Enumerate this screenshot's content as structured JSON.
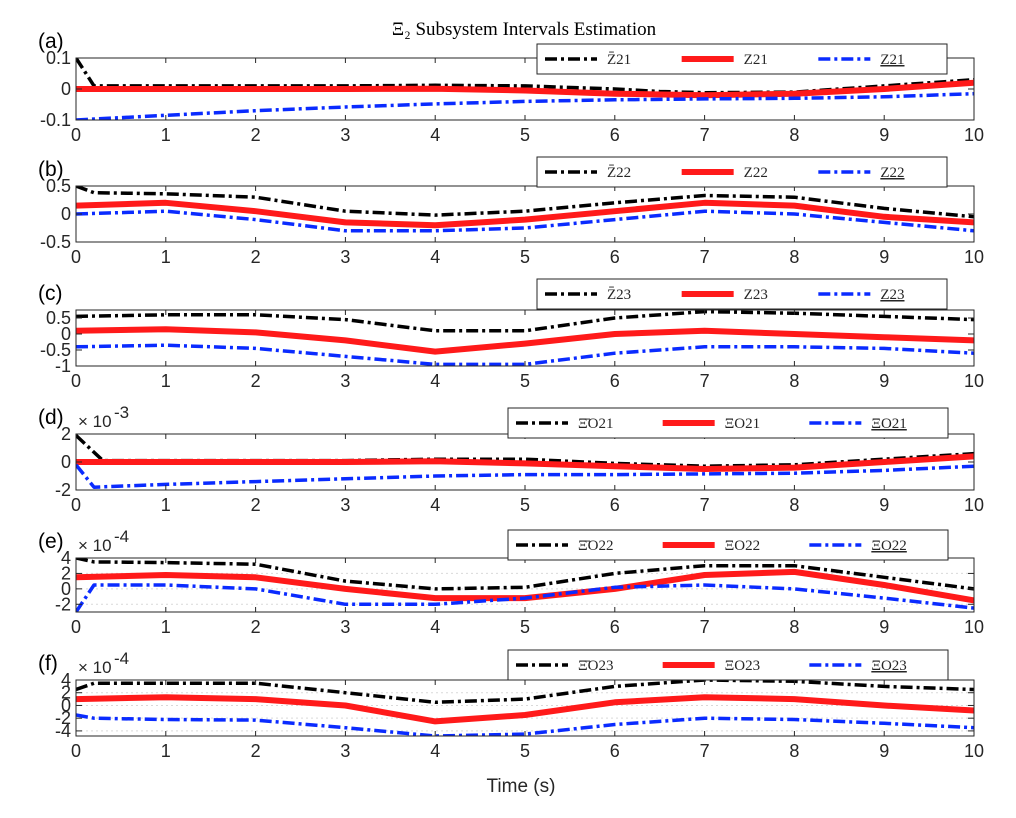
{
  "figure": {
    "suptitle": "Ξ₂ Subsystem Intervals Estimation",
    "xlabel": "Time (s)"
  },
  "colors": {
    "upper": "#000000",
    "actual": "#ff1a1a",
    "lower": "#0a2bff",
    "axis": "#262626",
    "grid": "#d9d9d9"
  },
  "chart_data": [
    {
      "type": "line",
      "label": "(a)",
      "exponent": "",
      "xlim": [
        0,
        10
      ],
      "ylim": [
        -0.1,
        0.1
      ],
      "xticks": [
        0,
        1,
        2,
        3,
        4,
        5,
        6,
        7,
        8,
        9,
        10
      ],
      "yticks": [
        "0.1",
        "0",
        "-0.1"
      ],
      "ytick_values": [
        0.1,
        0,
        -0.1
      ],
      "grid": false,
      "legend_position": "top-right",
      "series": [
        {
          "name": "Z̄̄21",
          "role": "upper",
          "x": [
            0,
            0.2,
            1,
            2,
            3,
            4,
            5,
            6,
            6.5,
            7,
            8,
            9,
            10
          ],
          "y": [
            0.1,
            0.01,
            0.01,
            0.01,
            0.01,
            0.012,
            0.01,
            0.0,
            -0.008,
            -0.012,
            -0.01,
            0.01,
            0.03
          ]
        },
        {
          "name": "Z21",
          "role": "actual",
          "x": [
            0,
            1,
            2,
            3,
            4,
            5,
            6,
            7,
            8,
            9,
            10
          ],
          "y": [
            0,
            0,
            0,
            0,
            0.001,
            -0.005,
            -0.015,
            -0.02,
            -0.015,
            0.0,
            0.02
          ]
        },
        {
          "name": "Z21",
          "role": "lower",
          "x": [
            0,
            1,
            2,
            3,
            4,
            5,
            6,
            7,
            8,
            9,
            10
          ],
          "y": [
            -0.1,
            -0.085,
            -0.07,
            -0.058,
            -0.048,
            -0.04,
            -0.035,
            -0.032,
            -0.03,
            -0.025,
            -0.015
          ]
        }
      ]
    },
    {
      "type": "line",
      "label": "(b)",
      "exponent": "",
      "xlim": [
        0,
        10
      ],
      "ylim": [
        -0.5,
        0.5
      ],
      "xticks": [
        0,
        1,
        2,
        3,
        4,
        5,
        6,
        7,
        8,
        9,
        10
      ],
      "yticks": [
        "0.5",
        "0",
        "-0.5"
      ],
      "ytick_values": [
        0.5,
        0,
        -0.5
      ],
      "grid": false,
      "legend_position": "top-right",
      "series": [
        {
          "name": "Z̄̄22",
          "role": "upper",
          "x": [
            0,
            0.2,
            1,
            2,
            3,
            4,
            5,
            6,
            7,
            8,
            9,
            10
          ],
          "y": [
            0.5,
            0.38,
            0.36,
            0.3,
            0.05,
            -0.02,
            0.05,
            0.2,
            0.33,
            0.3,
            0.1,
            -0.05
          ]
        },
        {
          "name": "Z22",
          "role": "actual",
          "x": [
            0,
            1,
            2,
            3,
            4,
            5,
            6,
            7,
            8,
            9,
            10
          ],
          "y": [
            0.15,
            0.2,
            0.05,
            -0.15,
            -0.2,
            -0.1,
            0.05,
            0.2,
            0.15,
            -0.05,
            -0.15
          ]
        },
        {
          "name": "Z22",
          "role": "lower",
          "x": [
            0,
            1,
            2,
            3,
            4,
            5,
            6,
            7,
            8,
            9,
            10
          ],
          "y": [
            0.0,
            0.05,
            -0.1,
            -0.3,
            -0.3,
            -0.25,
            -0.1,
            0.05,
            0.0,
            -0.15,
            -0.3
          ]
        }
      ]
    },
    {
      "type": "line",
      "label": "(c)",
      "exponent": "",
      "xlim": [
        0,
        10
      ],
      "ylim": [
        -1,
        0.75
      ],
      "xticks": [
        0,
        1,
        2,
        3,
        4,
        5,
        6,
        7,
        8,
        9,
        10
      ],
      "yticks": [
        "0.5",
        "0",
        "-0.5",
        "-1"
      ],
      "ytick_values": [
        0.5,
        0,
        -0.5,
        -1
      ],
      "grid": false,
      "legend_position": "top-right",
      "series": [
        {
          "name": "Z̄̄23",
          "role": "upper",
          "x": [
            0,
            1,
            2,
            3,
            4,
            5,
            6,
            7,
            8,
            9,
            10
          ],
          "y": [
            0.55,
            0.6,
            0.6,
            0.45,
            0.1,
            0.1,
            0.5,
            0.7,
            0.65,
            0.55,
            0.45
          ]
        },
        {
          "name": "Z23",
          "role": "actual",
          "x": [
            0,
            1,
            2,
            3,
            4,
            5,
            6,
            7,
            8,
            9,
            10
          ],
          "y": [
            0.1,
            0.15,
            0.05,
            -0.2,
            -0.55,
            -0.3,
            0.0,
            0.1,
            0.0,
            -0.1,
            -0.2
          ]
        },
        {
          "name": "Z23",
          "role": "lower",
          "x": [
            0,
            1,
            2,
            3,
            4,
            5,
            6,
            7,
            8,
            9,
            10
          ],
          "y": [
            -0.4,
            -0.35,
            -0.45,
            -0.7,
            -0.95,
            -0.95,
            -0.6,
            -0.4,
            -0.4,
            -0.45,
            -0.6
          ]
        }
      ]
    },
    {
      "type": "line",
      "label": "(d)",
      "exponent": "-3",
      "xlim": [
        0,
        10
      ],
      "ylim": [
        -2,
        2
      ],
      "xticks": [
        0,
        1,
        2,
        3,
        4,
        5,
        6,
        7,
        8,
        9,
        10
      ],
      "yticks": [
        "2",
        "0",
        "-2"
      ],
      "ytick_values": [
        2,
        0,
        -2
      ],
      "grid": false,
      "legend_position": "top-right",
      "series": [
        {
          "name": "Ξ̄̄O21",
          "role": "upper",
          "x": [
            0,
            0.3,
            1,
            2,
            3,
            4,
            5,
            6,
            7,
            8,
            9,
            10
          ],
          "y": [
            1.9,
            0.1,
            0.1,
            0.1,
            0.1,
            0.2,
            0.2,
            -0.1,
            -0.3,
            -0.2,
            0.2,
            0.6
          ]
        },
        {
          "name": "ΞO21",
          "role": "actual",
          "x": [
            0,
            1,
            2,
            3,
            4,
            5,
            6,
            7,
            8,
            9,
            10
          ],
          "y": [
            0,
            0,
            0,
            0,
            0.05,
            -0.1,
            -0.3,
            -0.5,
            -0.4,
            0.0,
            0.4
          ]
        },
        {
          "name": "ΞO21",
          "role": "lower",
          "x": [
            0,
            0.2,
            1,
            2,
            3,
            4,
            5,
            6,
            7,
            8,
            9,
            10
          ],
          "y": [
            -0.2,
            -1.8,
            -1.6,
            -1.4,
            -1.2,
            -1.0,
            -0.9,
            -0.9,
            -0.85,
            -0.8,
            -0.6,
            -0.3
          ]
        }
      ]
    },
    {
      "type": "line",
      "label": "(e)",
      "exponent": "-4",
      "xlim": [
        0,
        10
      ],
      "ylim": [
        -3,
        4
      ],
      "xticks": [
        0,
        1,
        2,
        3,
        4,
        5,
        6,
        7,
        8,
        9,
        10
      ],
      "yticks": [
        "4",
        "2",
        "0",
        "-2"
      ],
      "ytick_values": [
        4,
        2,
        0,
        -2
      ],
      "grid": true,
      "legend_position": "top-right",
      "series": [
        {
          "name": "Ξ̄̄O22",
          "role": "upper",
          "x": [
            0,
            0.2,
            1,
            2,
            3,
            4,
            5,
            6,
            7,
            8,
            9,
            10
          ],
          "y": [
            4,
            3.5,
            3.4,
            3.2,
            1.0,
            0.0,
            0.2,
            2.0,
            3.0,
            3.0,
            1.5,
            0.0
          ]
        },
        {
          "name": "ΞO22",
          "role": "actual",
          "x": [
            0,
            1,
            2,
            3,
            4,
            5,
            6,
            7,
            8,
            9,
            10
          ],
          "y": [
            1.5,
            1.8,
            1.5,
            0,
            -1.2,
            -1.2,
            0,
            1.8,
            2.2,
            0.5,
            -1.5
          ]
        },
        {
          "name": "ΞO22",
          "role": "lower",
          "x": [
            0,
            0.2,
            1,
            2,
            3,
            4,
            5,
            6,
            7,
            8,
            9,
            10
          ],
          "y": [
            -3,
            0.5,
            0.5,
            0.0,
            -2.0,
            -2.0,
            -1.2,
            0.2,
            0.5,
            0.0,
            -1.2,
            -2.5
          ]
        }
      ]
    },
    {
      "type": "line",
      "label": "(f)",
      "exponent": "-4",
      "xlim": [
        0,
        10
      ],
      "ylim": [
        -4.8,
        4
      ],
      "xticks": [
        0,
        1,
        2,
        3,
        4,
        5,
        6,
        7,
        8,
        9,
        10
      ],
      "yticks": [
        "4",
        "2",
        "0",
        "-2",
        "-4"
      ],
      "ytick_values": [
        4,
        2,
        0,
        -2,
        -4
      ],
      "grid": true,
      "legend_position": "top-right",
      "series": [
        {
          "name": "Ξ̄̄O23",
          "role": "upper",
          "x": [
            0,
            0.2,
            1,
            2,
            3,
            4,
            5,
            6,
            7,
            8,
            9,
            10
          ],
          "y": [
            2.5,
            3.5,
            3.5,
            3.5,
            2.0,
            0.5,
            1.0,
            3.0,
            4.0,
            3.8,
            3.0,
            2.5
          ]
        },
        {
          "name": "ΞO23",
          "role": "actual",
          "x": [
            0,
            1,
            2,
            3,
            4,
            5,
            6,
            7,
            8,
            9,
            10
          ],
          "y": [
            1.0,
            1.3,
            1.0,
            0.0,
            -2.5,
            -1.5,
            0.5,
            1.3,
            1.0,
            0.0,
            -0.8
          ]
        },
        {
          "name": "ΞO23",
          "role": "lower",
          "x": [
            0,
            0.2,
            1,
            2,
            3,
            4,
            5,
            6,
            7,
            8,
            9,
            10
          ],
          "y": [
            -1.5,
            -2.0,
            -2.2,
            -2.3,
            -3.5,
            -4.8,
            -4.5,
            -3.0,
            -2.0,
            -2.2,
            -2.8,
            -3.5
          ]
        }
      ]
    }
  ]
}
